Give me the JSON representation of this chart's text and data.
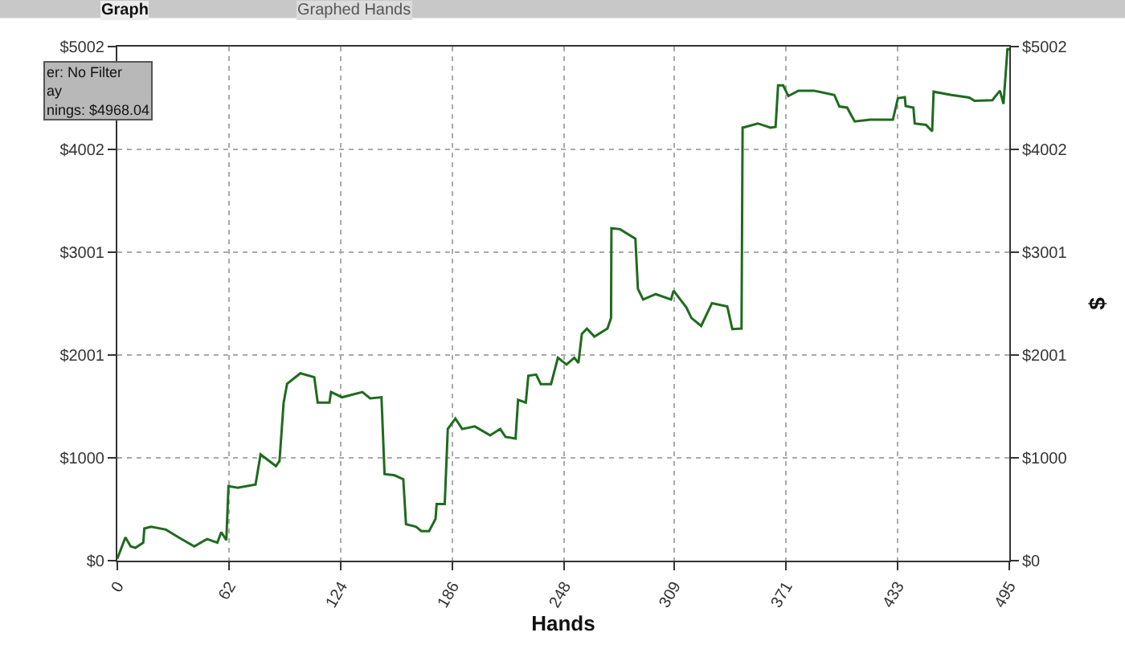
{
  "chart_data": {
    "type": "line",
    "xlabel": "Hands",
    "y2label": "$",
    "annotations": [
      "Graph",
      "Graphed Hands",
      "er: No Filter",
      "ay",
      "nings: $4968.04"
    ],
    "series": [
      {
        "color": "#1e6b1e",
        "x": [
          0,
          4.5,
          7.4,
          10,
          14.4,
          15,
          18.7,
          27,
          34,
          42.7,
          49.8,
          55.5,
          57.7,
          60.5,
          61.7,
          66.8,
          76.7,
          79.5,
          88,
          90,
          92.3,
          94.2,
          101.6,
          109.3,
          111.2,
          117.7,
          118.6,
          124.8,
          136,
          140.3,
          146.6,
          148.3,
          153.9,
          158.7,
          160.2,
          165.8,
          168.7,
          173,
          176.6,
          177.2,
          181.7,
          183.4,
          187.6,
          191.4,
          198.4,
          206.9,
          212.5,
          215.4,
          221,
          222.4,
          226.7,
          228.1,
          232.4,
          235,
          240.7,
          244.5,
          249.3,
          253.6,
          255.9,
          257.8,
          260.6,
          264.8,
          272,
          274,
          274.2,
          279,
          287.5,
          288.9,
          291.8,
          298.8,
          307.3,
          308.7,
          315.8,
          318.6,
          324,
          330,
          338.5,
          341.3,
          346.4,
          347,
          355.4,
          362.5,
          365.3,
          366.7,
          369.5,
          372.4,
          378,
          386.5,
          397.9,
          400.7,
          405,
          409.2,
          417.7,
          430.4,
          433.2,
          437,
          437.5,
          441.8,
          442.5,
          448.8,
          452.2,
          453,
          462.9,
          472.8,
          475.7,
          485.6,
          489.8,
          491.8,
          494,
          495
        ],
        "values": [
          20,
          227,
          139,
          125,
          175,
          313,
          329,
          302,
          227,
          139,
          210,
          175,
          278,
          200,
          725,
          710,
          740,
          1034,
          920,
          970,
          1538,
          1720,
          1823,
          1785,
          1538,
          1538,
          1641,
          1590,
          1641,
          1579,
          1590,
          843,
          830,
          792,
          355,
          329,
          288,
          288,
          406,
          550,
          550,
          1281,
          1383,
          1281,
          1306,
          1219,
          1281,
          1204,
          1188,
          1564,
          1538,
          1800,
          1811,
          1718,
          1718,
          1975,
          1908,
          1975,
          1925,
          2207,
          2258,
          2180,
          2258,
          2361,
          3235,
          3225,
          3133,
          2644,
          2541,
          2593,
          2541,
          2627,
          2463,
          2361,
          2284,
          2505,
          2473,
          2253,
          2258,
          4213,
          4254,
          4213,
          4220,
          4624,
          4624,
          4521,
          4573,
          4573,
          4531,
          4419,
          4408,
          4274,
          4290,
          4290,
          4500,
          4510,
          4424,
          4408,
          4254,
          4240,
          4177,
          4563,
          4531,
          4506,
          4475,
          4480,
          4573,
          4444,
          4984,
          4968
        ]
      }
    ],
    "xlim": [
      0,
      495
    ],
    "xticks": [
      0,
      62,
      124,
      186,
      248,
      309,
      371,
      433,
      495
    ],
    "ylim": [
      0,
      5002
    ],
    "yticks": [
      {
        "value": 0,
        "label": "$0"
      },
      {
        "value": 1000.4,
        "label": "$1000"
      },
      {
        "value": 2000.8,
        "label": "$2001"
      },
      {
        "value": 3001.2,
        "label": "$3001"
      },
      {
        "value": 4001.6,
        "label": "$4002"
      },
      {
        "value": 5002,
        "label": "$5002"
      }
    ],
    "y2lim": [
      0,
      5002
    ],
    "y2ticks": [
      {
        "value": 0,
        "label": "$0"
      },
      {
        "value": 1000.4,
        "label": "$1000"
      },
      {
        "value": 2000.8,
        "label": "$2001"
      },
      {
        "value": 3001.2,
        "label": "$3001"
      },
      {
        "value": 4001.6,
        "label": "$4002"
      },
      {
        "value": 5002,
        "label": "$5002"
      }
    ],
    "grid": true,
    "marker": "none",
    "line_style": "solid"
  }
}
